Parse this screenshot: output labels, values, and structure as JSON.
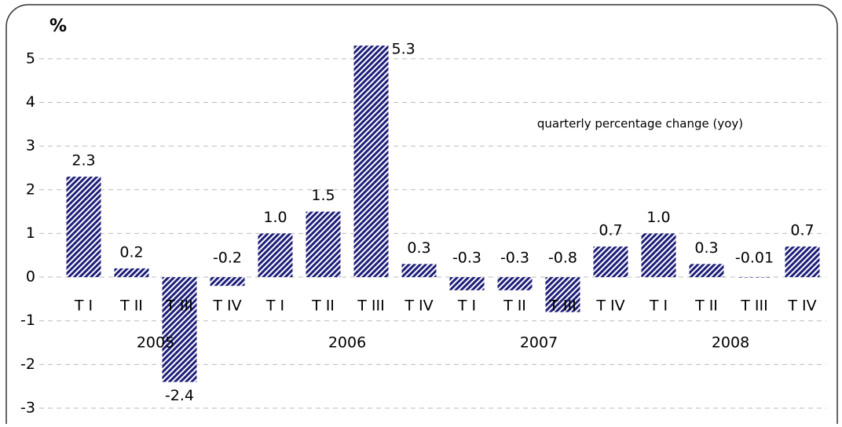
{
  "chart_data": {
    "type": "bar",
    "unit_label": "%",
    "annotation": "quarterly percentage change (yoy)",
    "categories": [
      "T I",
      "T II",
      "T III",
      "T IV",
      "T I",
      "T II",
      "T III",
      "T IV",
      "T I",
      "T II",
      "T III",
      "T IV",
      "T I",
      "T II",
      "T III",
      "T IV"
    ],
    "years": [
      "2005",
      "2006",
      "2007",
      "2008"
    ],
    "values": [
      2.3,
      0.2,
      -2.4,
      -0.2,
      1.0,
      1.5,
      5.3,
      0.3,
      -0.3,
      -0.3,
      -0.8,
      0.7,
      1.0,
      0.3,
      -0.01,
      0.7
    ],
    "value_labels": [
      "2.3",
      "0.2",
      "-2.4",
      "-0.2",
      "1.0",
      "1.5",
      "5.3",
      "0.3",
      "-0.3",
      "-0.3",
      "-0.8",
      "0.7",
      "1.0",
      "0.3",
      "-0.01",
      "0.7"
    ],
    "color": "#1f1f7a",
    "ylim": [
      -3,
      5.5
    ],
    "yticks": [
      -3,
      -2,
      -1,
      0,
      1,
      2,
      3,
      4,
      5
    ],
    "grid": true
  }
}
